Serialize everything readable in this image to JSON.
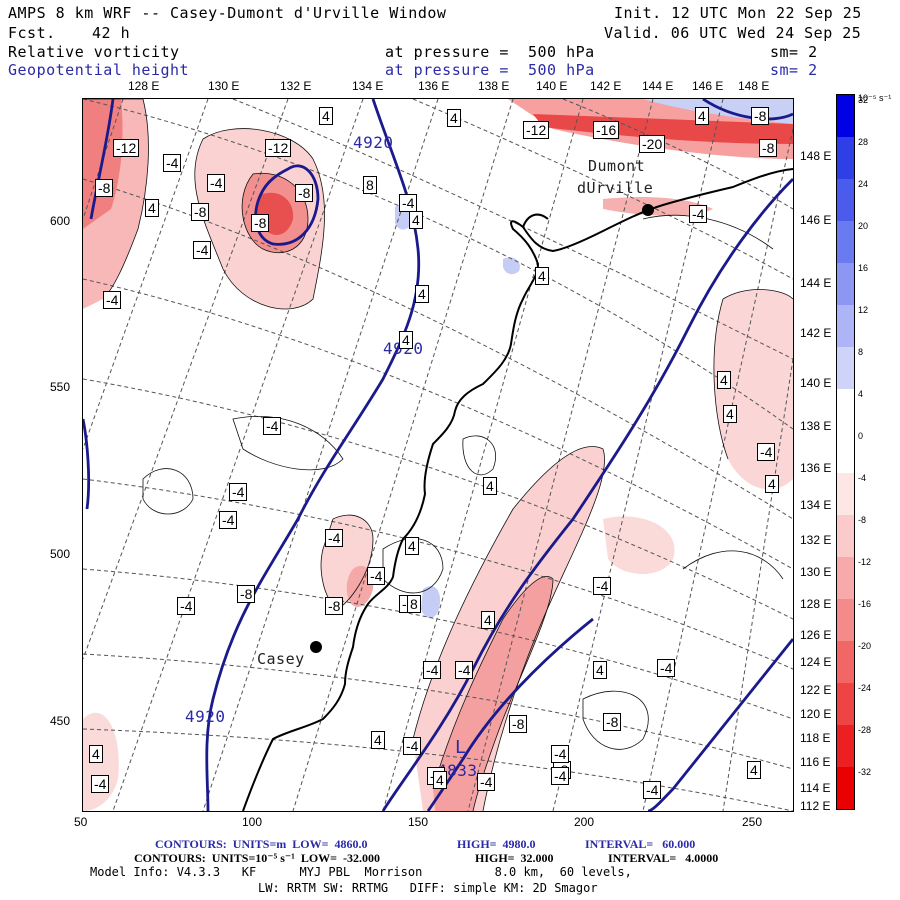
{
  "header": {
    "title_left": "AMPS 8 km WRF -- Casey-Dumont d'Urville Window",
    "fcst_label": "Fcst.",
    "fcst_value": "42 h",
    "init": "Init. 12 UTC Mon 22 Sep 25",
    "valid": "Valid. 06 UTC Wed 24 Sep 25",
    "field1": "Relative vorticity",
    "field1_pressure": "at pressure =  500 hPa",
    "field1_sm": "sm= 2",
    "field2": "Geopotential height",
    "field2_pressure": "at pressure =  500 hPa",
    "field2_sm": "sm= 2"
  },
  "lon_labels_top": [
    "128 E",
    "130 E",
    "132 E",
    "134 E",
    "136 E",
    "138 E",
    "140 E",
    "142 E",
    "144 E",
    "146 E",
    "148 E"
  ],
  "lon_labels_right": [
    "148 E",
    "146 E",
    "144 E",
    "142 E",
    "140 E",
    "138 E",
    "136 E",
    "134 E",
    "132 E",
    "130 E",
    "128 E",
    "126 E",
    "124 E",
    "122 E",
    "120 E",
    "118 E",
    "116 E",
    "114 E",
    "112 E"
  ],
  "y_ticks": [
    "600",
    "550",
    "500",
    "450"
  ],
  "x_ticks": [
    "50",
    "100",
    "150",
    "200",
    "250"
  ],
  "stations": [
    {
      "name_line1": "Dumont",
      "name_line2": "dUrville"
    },
    {
      "name_line1": "Casey",
      "name_line2": ""
    }
  ],
  "height_labels": [
    "4920",
    "4920",
    "4920"
  ],
  "low_marker": {
    "letter": "L",
    "value": "4833"
  },
  "vort_labels": [
    "-12",
    "-12",
    "-8",
    "-4",
    "-4",
    "-8",
    "-8",
    "4",
    "-8",
    "4",
    "-4",
    "-4",
    "4",
    "-4",
    "-12",
    "-16",
    "-20",
    "4",
    "-8",
    "-8",
    "4",
    "8",
    "4",
    "4",
    "4",
    "-4",
    "4",
    "4",
    "-4",
    "4",
    "4",
    "-4",
    "-4",
    "-4",
    "-4",
    "-8",
    "-4",
    "4",
    "-4",
    "-8",
    "-4",
    "8",
    "4",
    "-4",
    "4",
    "-4",
    "-4",
    "-4",
    "-8",
    "-8",
    "-8",
    "-4",
    "4",
    "-4",
    "-4",
    "-4",
    "4",
    "4",
    "-4",
    "-4",
    "-4",
    "4"
  ],
  "colorbar": {
    "unit": "10⁻⁵ s⁻¹",
    "labels": [
      "32",
      "28",
      "24",
      "20",
      "16",
      "12",
      "8",
      "4",
      "0",
      "-4",
      "-8",
      "-12",
      "-16",
      "-20",
      "-24",
      "-28",
      "-32"
    ],
    "colors": [
      "#0000e6",
      "#2e3fe8",
      "#4b5ced",
      "#6a7af0",
      "#8c97f3",
      "#aeb5f6",
      "#cfd3fa",
      "#ffffff",
      "#ffffff",
      "#fde6e6",
      "#fbcaca",
      "#f8aaaa",
      "#f58a8a",
      "#f26666",
      "#ef4444",
      "#ec2020",
      "#e90000"
    ]
  },
  "footer": {
    "line1_a": "CONTOURS:  UNITS=m  LOW=  4860.0",
    "line1_b": "HIGH=  4980.0",
    "line1_c": "INTERVAL=   60.000",
    "line2_a": "CONTOURS:  UNITS=10⁻⁵ s⁻¹  LOW=  -32.000",
    "line2_b": "HIGH=  32.000",
    "line2_c": "INTERVAL=   4.0000",
    "line3": "Model Info: V4.3.3   KF      MYJ PBL  Morrison          8.0 km,  60 levels,",
    "line4": "LW: RRTM SW: RRTMG   DIFF: simple KM: 2D Smagor"
  }
}
